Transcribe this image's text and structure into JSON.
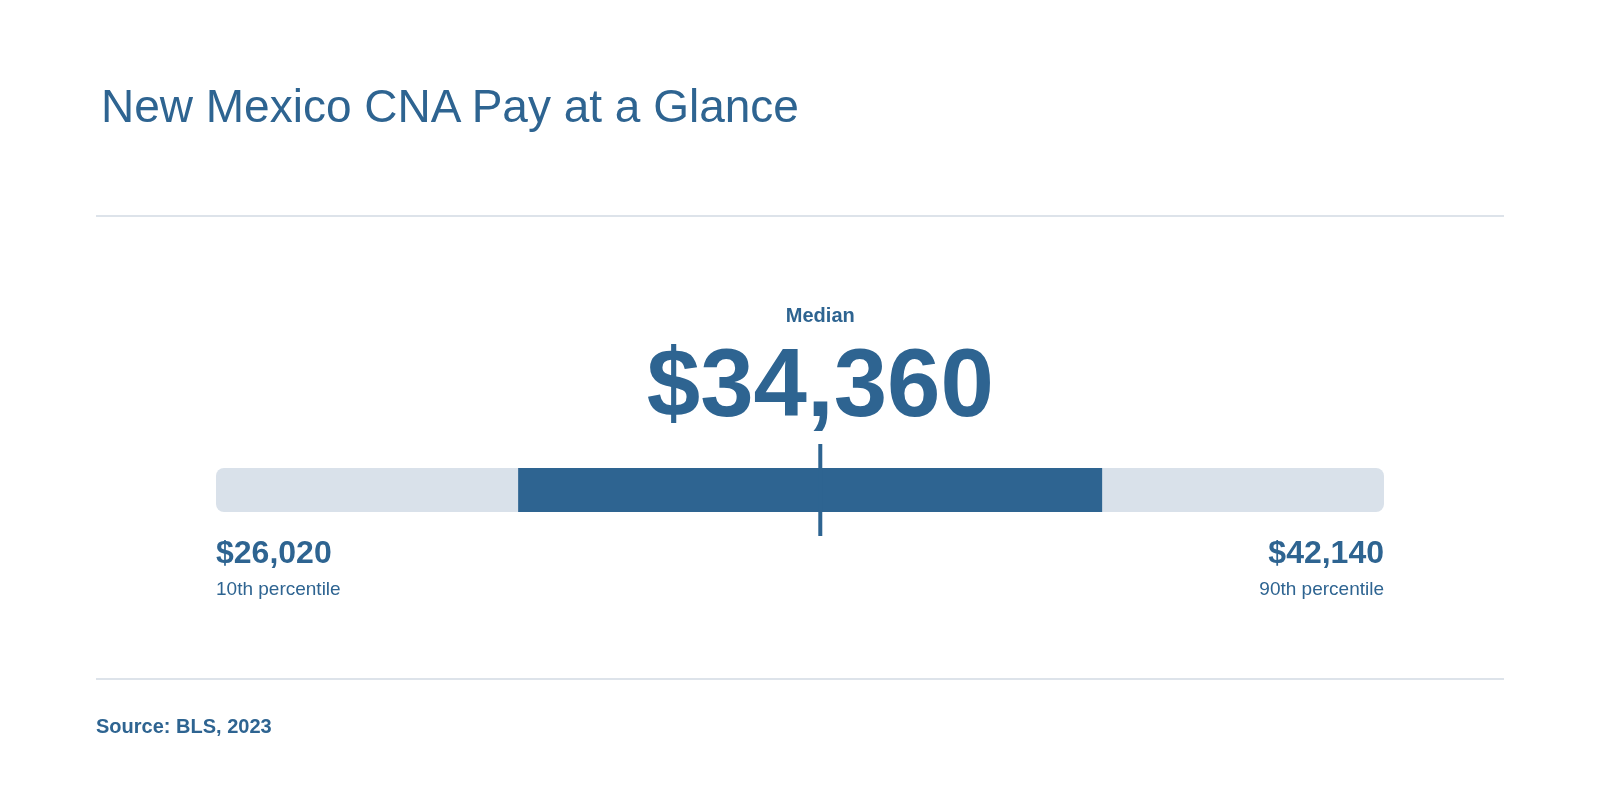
{
  "chart_data": {
    "type": "other",
    "title": "New Mexico CNA Pay at a Glance",
    "categories": [
      "10th percentile",
      "Median",
      "90th percentile"
    ],
    "series": [
      {
        "color": "#2e6491",
        "values": [
          26020,
          34360,
          42140
        ],
        "value_labels": [
          "$26,020",
          "$34,360",
          "$42,140"
        ]
      }
    ],
    "annotations": [
      "Source: BLS, 2023"
    ]
  }
}
